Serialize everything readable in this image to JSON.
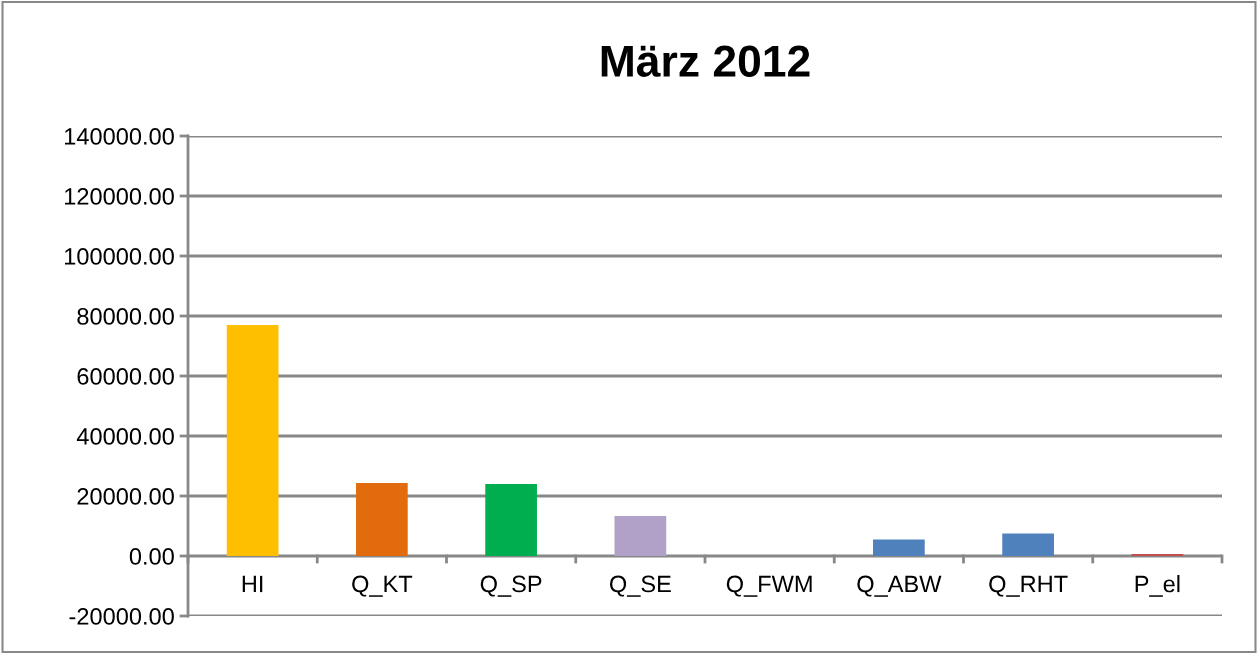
{
  "chart_data": {
    "type": "bar",
    "title": "März 2012",
    "categories": [
      "HI",
      "Q_KT",
      "Q_SP",
      "Q_SE",
      "Q_FWM",
      "Q_ABW",
      "Q_RHT",
      "P_el"
    ],
    "values": [
      77000,
      24300,
      24000,
      13300,
      0,
      5500,
      7500,
      700
    ],
    "colors": [
      "#fdbf00",
      "#e26c0d",
      "#00ae50",
      "#b1a0c7",
      "#4f81bd",
      "#4f81bd",
      "#4f81bd",
      "#c0504d"
    ],
    "ylim": [
      -20000,
      140000
    ],
    "yticks": [
      {
        "value": -20000,
        "label": "-20000.00"
      },
      {
        "value": 0,
        "label": "0.00"
      },
      {
        "value": 20000,
        "label": "20000.00"
      },
      {
        "value": 40000,
        "label": "40000.00"
      },
      {
        "value": 60000,
        "label": "60000.00"
      },
      {
        "value": 80000,
        "label": "80000.00"
      },
      {
        "value": 100000,
        "label": "100000.00"
      },
      {
        "value": 120000,
        "label": "120000.00"
      },
      {
        "value": 140000,
        "label": "140000.00"
      }
    ],
    "grid": "y"
  }
}
